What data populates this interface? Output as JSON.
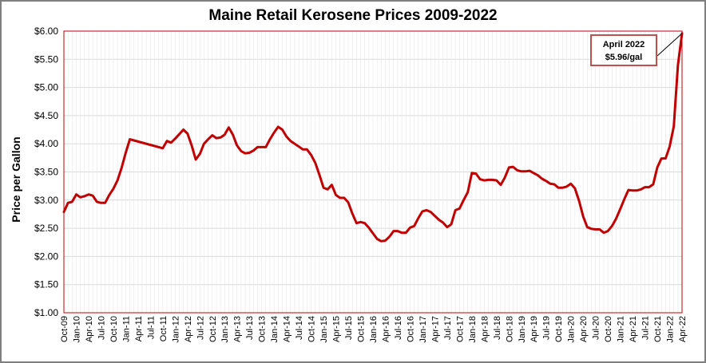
{
  "chart_data": {
    "type": "line",
    "title": "Maine Retail Kerosene Prices 2009-2022",
    "xlabel": "",
    "ylabel": "Price per Gallon",
    "ylim": [
      1.0,
      6.0
    ],
    "yticks": [
      "$1.00",
      "$1.50",
      "$2.00",
      "$2.50",
      "$3.00",
      "$3.50",
      "$4.00",
      "$4.50",
      "$5.00",
      "$5.50",
      "$6.00"
    ],
    "grid": true,
    "line_color": "#c00000",
    "xtick_labels": [
      "Oct-09",
      "Jan-10",
      "Apr-10",
      "Jul-10",
      "Oct-10",
      "Jan-11",
      "Apr-11",
      "Jul-11",
      "Oct-11",
      "Jan-12",
      "Apr-12",
      "Jul-12",
      "Oct-12",
      "Jan-13",
      "Apr-13",
      "Jul-13",
      "Oct-13",
      "Jan-14",
      "Apr-14",
      "Jul-14",
      "Oct-14",
      "Jan-15",
      "Apr-15",
      "Jul-15",
      "Oct-15",
      "Jan-16",
      "Apr-16",
      "Jul-16",
      "Oct-16",
      "Jan-17",
      "Apr-17",
      "Jul-17",
      "Oct-17",
      "Jan-18",
      "Apr-18",
      "Jul-18",
      "Oct-18",
      "Jan-19",
      "Apr-19",
      "Jul-19",
      "Oct-19",
      "Jan-20",
      "Apr-20",
      "Jul-20",
      "Oct-20",
      "Jan-21",
      "Apr-21",
      "Jul-21",
      "Oct-21",
      "Jan-22",
      "Apr-22"
    ],
    "series": [
      {
        "x": [
          "Oct-09",
          "Nov-09",
          "Dec-09",
          "Jan-10",
          "Feb-10",
          "Mar-10",
          "Apr-10",
          "May-10",
          "Jun-10",
          "Jul-10",
          "Aug-10",
          "Sep-10",
          "Oct-10",
          "Nov-10",
          "Dec-10",
          "Jan-11",
          "Feb-11",
          "Mar-11",
          "Oct-11",
          "Nov-11",
          "Dec-11",
          "Jan-12",
          "Feb-12",
          "Mar-12",
          "Apr-12",
          "May-12",
          "Jun-12",
          "Jul-12",
          "Aug-12",
          "Sep-12",
          "Oct-12",
          "Nov-12",
          "Dec-12",
          "Jan-13",
          "Feb-13",
          "Mar-13",
          "Apr-13",
          "May-13",
          "Jun-13",
          "Jul-13",
          "Aug-13",
          "Sep-13",
          "Oct-13",
          "Nov-13",
          "Dec-13",
          "Jan-14",
          "Feb-14",
          "Mar-14",
          "Apr-14",
          "May-14",
          "Jun-14",
          "Jul-14",
          "Aug-14",
          "Sep-14",
          "Oct-14",
          "Nov-14",
          "Dec-14",
          "Jan-15",
          "Feb-15",
          "Mar-15",
          "Apr-15",
          "May-15",
          "Jun-15",
          "Jul-15",
          "Aug-15",
          "Sep-15",
          "Oct-15",
          "Nov-15",
          "Dec-15",
          "Jan-16",
          "Feb-16",
          "Mar-16",
          "Apr-16",
          "May-16",
          "Jun-16",
          "Jul-16",
          "Aug-16",
          "Sep-16",
          "Oct-16",
          "Nov-16",
          "Dec-16",
          "Jan-17",
          "Feb-17",
          "Mar-17",
          "Apr-17",
          "May-17",
          "Jun-17",
          "Jul-17",
          "Aug-17",
          "Sep-17",
          "Oct-17",
          "Nov-17",
          "Dec-17",
          "Jan-18",
          "Feb-18",
          "Mar-18",
          "Apr-18",
          "May-18",
          "Jun-18",
          "Jul-18",
          "Aug-18",
          "Sep-18",
          "Oct-18",
          "Nov-18",
          "Dec-18",
          "Jan-19",
          "Feb-19",
          "Mar-19",
          "Apr-19",
          "May-19",
          "Jun-19",
          "Jul-19",
          "Aug-19",
          "Sep-19",
          "Oct-19",
          "Nov-19",
          "Dec-19",
          "Jan-20",
          "Feb-20",
          "Mar-20",
          "Apr-20",
          "May-20",
          "Jun-20",
          "Jul-20",
          "Aug-20",
          "Sep-20",
          "Oct-20",
          "Nov-20",
          "Dec-20",
          "Jan-21",
          "Feb-21",
          "Mar-21",
          "Apr-21",
          "May-21",
          "Jun-21",
          "Jul-21",
          "Aug-21",
          "Sep-21",
          "Oct-21",
          "Nov-21",
          "Dec-21",
          "Jan-22",
          "Feb-22",
          "Mar-22",
          "Apr-22"
        ],
        "y": [
          2.79,
          2.95,
          2.97,
          3.1,
          3.05,
          3.07,
          3.1,
          3.08,
          2.97,
          2.95,
          2.95,
          3.09,
          3.2,
          3.35,
          3.57,
          3.84,
          4.08,
          4.06,
          3.92,
          4.05,
          4.02,
          4.09,
          4.17,
          4.25,
          4.18,
          3.97,
          3.72,
          3.82,
          4.0,
          4.08,
          4.15,
          4.1,
          4.11,
          4.16,
          4.29,
          4.16,
          3.97,
          3.87,
          3.83,
          3.84,
          3.88,
          3.94,
          3.94,
          3.94,
          4.08,
          4.2,
          4.3,
          4.25,
          4.13,
          4.05,
          4.0,
          3.95,
          3.9,
          3.9,
          3.8,
          3.66,
          3.45,
          3.22,
          3.19,
          3.27,
          3.09,
          3.04,
          3.04,
          2.96,
          2.76,
          2.59,
          2.61,
          2.59,
          2.51,
          2.41,
          2.31,
          2.27,
          2.28,
          2.35,
          2.45,
          2.45,
          2.42,
          2.42,
          2.51,
          2.54,
          2.68,
          2.8,
          2.82,
          2.79,
          2.72,
          2.65,
          2.6,
          2.52,
          2.57,
          2.82,
          2.85,
          3.0,
          3.14,
          3.48,
          3.47,
          3.37,
          3.35,
          3.36,
          3.36,
          3.35,
          3.27,
          3.4,
          3.58,
          3.59,
          3.53,
          3.51,
          3.51,
          3.52,
          3.48,
          3.44,
          3.38,
          3.34,
          3.29,
          3.28,
          3.22,
          3.22,
          3.24,
          3.29,
          3.21,
          2.99,
          2.71,
          2.52,
          2.49,
          2.48,
          2.48,
          2.42,
          2.45,
          2.54,
          2.67,
          2.84,
          3.02,
          3.18,
          3.17,
          3.17,
          3.19,
          3.23,
          3.23,
          3.28,
          3.58,
          3.74,
          3.74,
          3.95,
          4.31,
          5.39,
          5.96
        ]
      }
    ],
    "annotation": {
      "line1": "April 2022",
      "line2": "$5.96/gal",
      "x": "Apr-22",
      "y": 5.96
    }
  }
}
